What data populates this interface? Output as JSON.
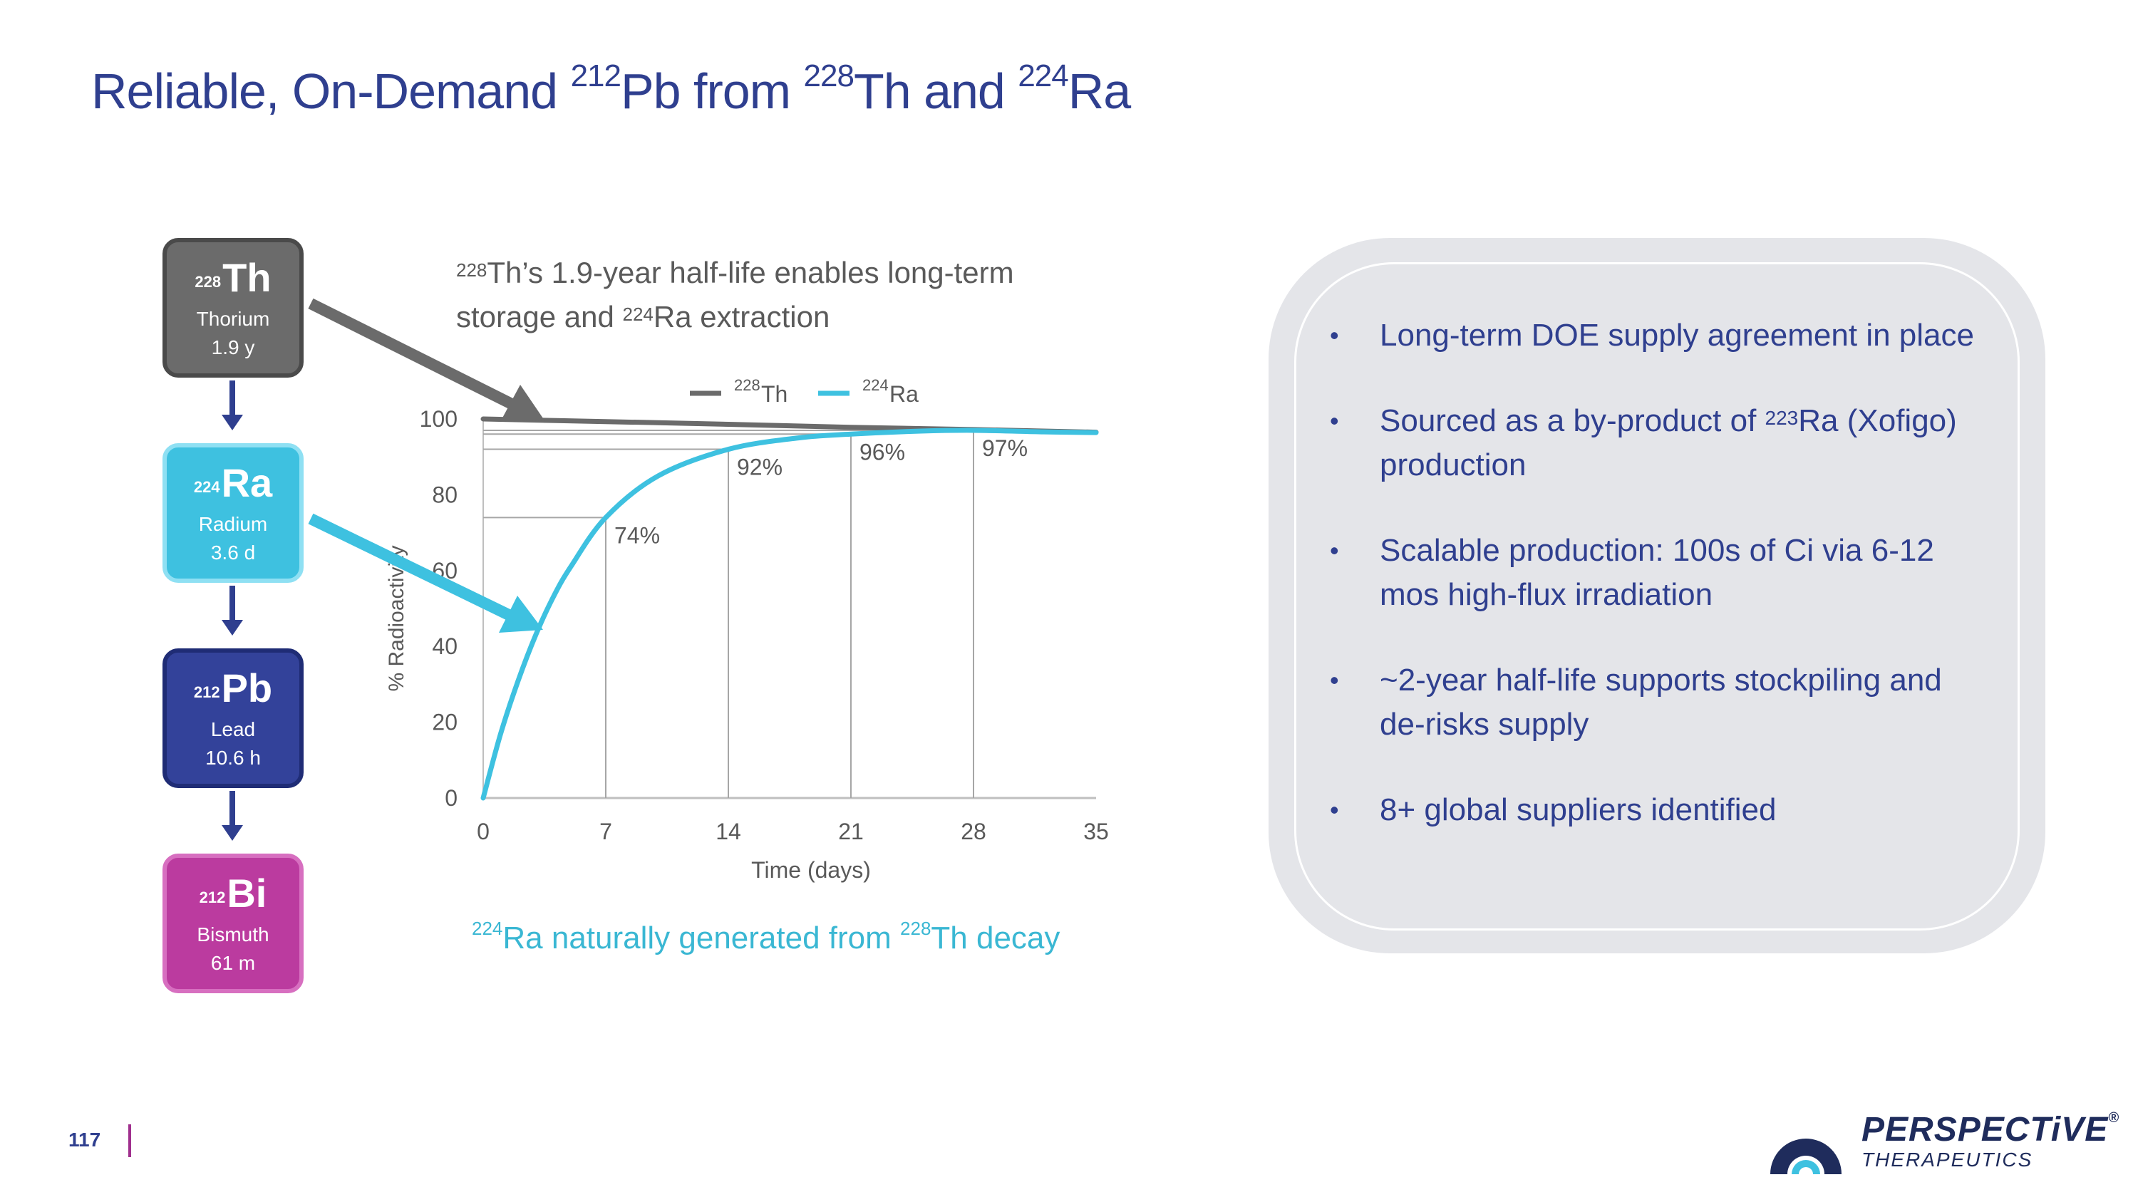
{
  "title": {
    "pre": "Reliable, On-Demand ",
    "s1": "212",
    "t1": "Pb from ",
    "s2": "228",
    "t2": "Th and ",
    "s3": "224",
    "t3": "Ra"
  },
  "isotopes": [
    {
      "mass": "228",
      "symbol": "Th",
      "name": "Thorium",
      "half_life": "1.9 y",
      "color": "#6b6b6b"
    },
    {
      "mass": "224",
      "symbol": "Ra",
      "name": "Radium",
      "half_life": "3.6 d",
      "color": "#3ec1e0"
    },
    {
      "mass": "212",
      "symbol": "Pb",
      "name": "Lead",
      "half_life": "10.6 h",
      "color": "#33429a"
    },
    {
      "mass": "212",
      "symbol": "Bi",
      "name": "Bismuth",
      "half_life": "61 m",
      "color": "#bb3b9f"
    }
  ],
  "chart_caption": {
    "s1": "228",
    "l1": "Th’s 1.9-year half-life enables long-term",
    "l2a": "storage and ",
    "s2": "224",
    "l2b": "Ra extraction"
  },
  "bottom_caption": {
    "s1": "224",
    "t1": "Ra naturally generated from ",
    "s2": "228",
    "t2": "Th decay"
  },
  "chart_data": {
    "type": "line",
    "xlabel": "Time (days)",
    "ylabel": "% Radioactivity",
    "xlim": [
      0,
      35
    ],
    "ylim": [
      0,
      100
    ],
    "xticks": [
      0,
      7,
      14,
      21,
      28,
      35
    ],
    "yticks": [
      0,
      20,
      40,
      60,
      80,
      100
    ],
    "legend_position": "top",
    "series": [
      {
        "name": "Th",
        "name_sup": "228",
        "color": "#6b6b6b",
        "x": [
          0,
          7,
          14,
          21,
          28,
          35
        ],
        "y": [
          100,
          99.3,
          98.6,
          97.8,
          97.2,
          96.5
        ]
      },
      {
        "name": "Ra",
        "name_sup": "224",
        "color": "#3ec1e0",
        "x": [
          0,
          1,
          2,
          3,
          4,
          5,
          7,
          10,
          14,
          18,
          21,
          25,
          28,
          32,
          35
        ],
        "y": [
          0,
          17,
          31,
          43,
          53,
          61,
          74,
          85,
          92,
          95,
          96,
          96.8,
          97,
          96.6,
          96.4
        ]
      }
    ],
    "annotations": [
      {
        "x": 7,
        "y": 74,
        "label": "74%"
      },
      {
        "x": 14,
        "y": 92,
        "label": "92%"
      },
      {
        "x": 21,
        "y": 96,
        "label": "96%"
      },
      {
        "x": 28,
        "y": 97,
        "label": "97%"
      }
    ]
  },
  "bullets": [
    {
      "text": "Long-term DOE supply agreement in place"
    },
    {
      "pre": "Sourced as a by-product of ",
      "sup": "223",
      "post": "Ra (Xofigo) production"
    },
    {
      "text": "Scalable production: 100s of Ci via 6-12 mos high-flux irradiation"
    },
    {
      "text": "~2-year half-life supports stockpiling and de-risks supply"
    },
    {
      "text": "8+ global suppliers identified"
    }
  ],
  "bullet_glyph": "•",
  "page_number": "117",
  "logo": {
    "name": "PERSPECTiVE",
    "mark": "®",
    "sub": "THERAPEUTICS"
  },
  "colors": {
    "title": "#2f3f8f",
    "accent_cyan": "#3ec1e0",
    "accent_magenta": "#a0308e"
  }
}
